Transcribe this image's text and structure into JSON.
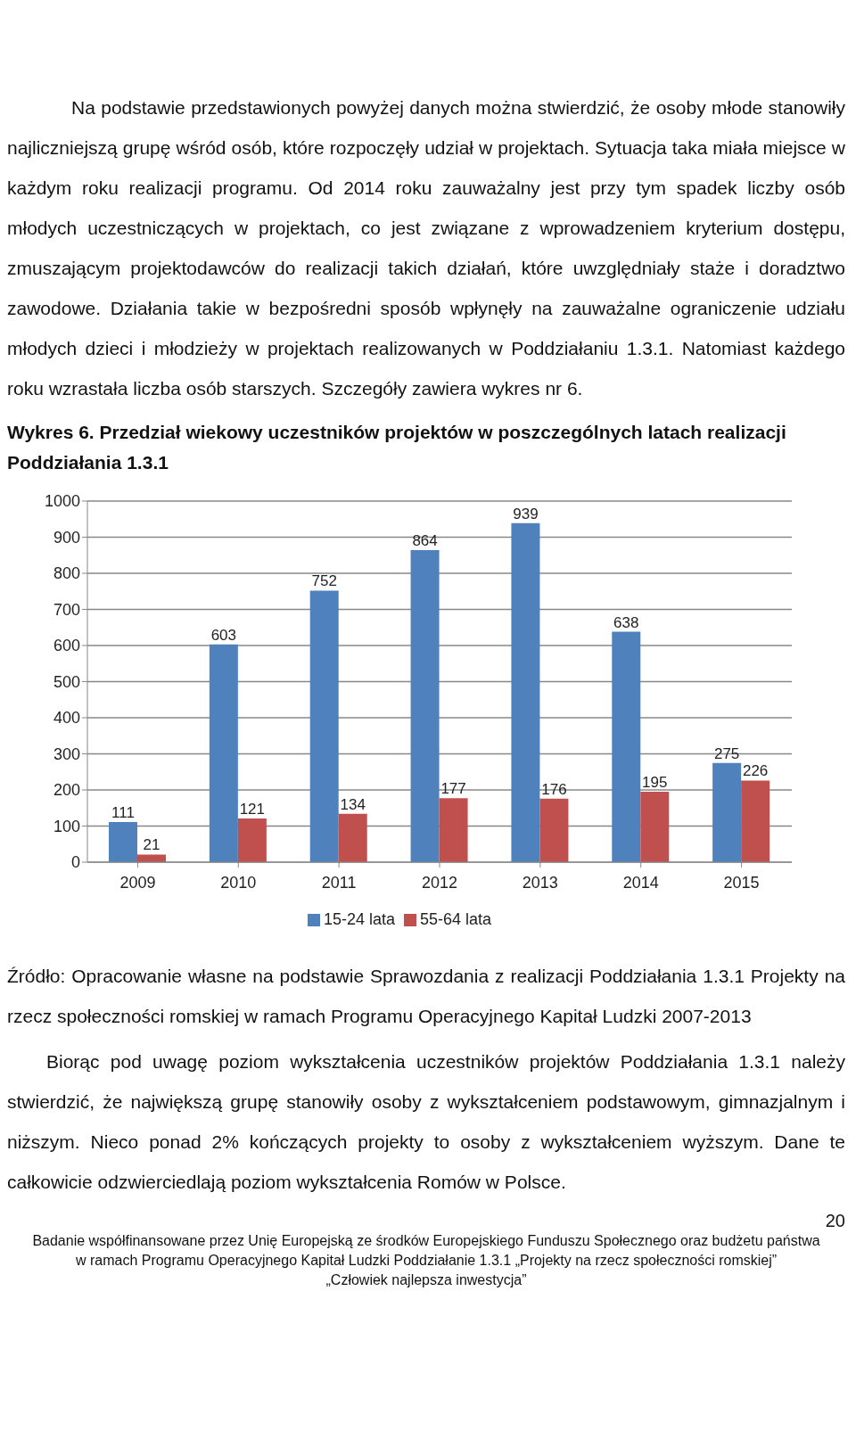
{
  "chart_data": {
    "type": "bar",
    "title": "Wykres 6. Przedział wiekowy uczestników projektów w poszczególnych latach realizacji Poddziałania 1.3.1",
    "categories": [
      "2009",
      "2010",
      "2011",
      "2012",
      "2013",
      "2014",
      "2015"
    ],
    "series": [
      {
        "name": "15-24 lata",
        "color": "#4f81bd",
        "values": [
          111,
          603,
          752,
          864,
          939,
          638,
          275
        ]
      },
      {
        "name": "55-64 lata",
        "color": "#c0504d",
        "values": [
          21,
          121,
          134,
          177,
          176,
          195,
          226
        ]
      }
    ],
    "ylim": [
      0,
      1000
    ],
    "yticks": [
      0,
      100,
      200,
      300,
      400,
      500,
      600,
      700,
      800,
      900,
      1000
    ],
    "grid": "y",
    "legend": "bottom",
    "data_labels": true,
    "annotations": [
      "Na podstawie przedstawionych powyżej danych można stwierdzić, że osoby młode stanowiły najliczniejszą grupę wśród osób, które rozpoczęły udział w projektach. Sytuacja taka miała miejsce w każdym roku realizacji programu. Od 2014 roku zauważalny jest przy tym spadek liczby osób młodych uczestniczących w projektach, co jest związane z wprowadzeniem kryterium dostępu, zmuszającym projektodawców do realizacji takich działań, które uwzględniały staże i doradztwo zawodowe. Działania takie w bezpośredni sposób wpłynęły na zauważalne ograniczenie udziału młodych dzieci i młodzieży w projektach realizowanych w Poddziałaniu 1.3.1. Natomiast każdego roku wzrastała liczba osób starszych. Szczegóły zawiera wykres nr 6.",
      "Źródło: Opracowanie własne na podstawie Sprawozdania z realizacji Poddziałania 1.3.1 Projekty na rzecz społeczności romskiej w ramach Programu Operacyjnego Kapitał Ludzki 2007-2013",
      "Biorąc pod uwagę poziom wykształcenia uczestników projektów Poddziałania 1.3.1 należy stwierdzić, że największą grupę stanowiły osoby z wykształceniem podstawowym, gimnazjalnym i niższym. Nieco ponad 2% kończących projekty to osoby z wykształceniem wyższym. Dane te całkowicie odzwierciedlają poziom wykształcenia Romów w Polsce.",
      "20",
      "Badanie współfinansowane przez Unię Europejską ze środków Europejskiego Funduszu Społecznego oraz budżetu państwa",
      "w ramach Programu Operacyjnego Kapitał Ludzki Poddziałanie 1.3.1 „Projekty na rzecz społeczności romskiej”",
      "„Człowiek najlepsza inwestycja”"
    ]
  }
}
